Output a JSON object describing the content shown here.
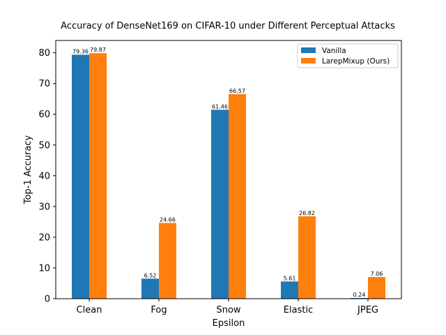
{
  "chart_data": {
    "type": "bar",
    "title": "Accuracy of DenseNet169 on CIFAR-10 under Different Perceptual Attacks",
    "xlabel": "Epsilon",
    "ylabel": "Top-1 Accuracy",
    "categories": [
      "Clean",
      "Fog",
      "Snow",
      "Elastic",
      "JPEG"
    ],
    "ylim": [
      0,
      84
    ],
    "yticks": [
      0,
      10,
      20,
      30,
      40,
      50,
      60,
      70,
      80
    ],
    "grid": false,
    "legend_position": "top-right",
    "series": [
      {
        "name": "Vanilla",
        "color": "#1f77b4",
        "values": [
          79.36,
          6.52,
          61.46,
          5.61,
          0.24
        ],
        "labels": [
          "79.36",
          "6.52",
          "61.46",
          "5.61",
          "0.24"
        ]
      },
      {
        "name": "LarepMixup (Ours)",
        "color": "#ff7f0e",
        "values": [
          79.87,
          24.66,
          66.57,
          26.82,
          7.06
        ],
        "labels": [
          "79.87",
          "24.66",
          "66.57",
          "26.82",
          "7.06"
        ]
      }
    ]
  }
}
